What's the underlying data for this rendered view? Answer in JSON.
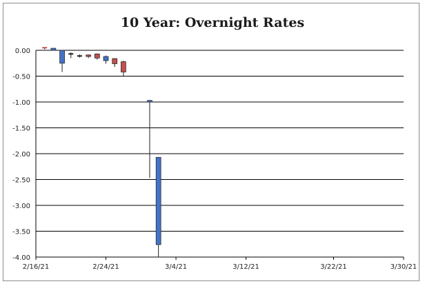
{
  "chart_data": {
    "type": "candlestick",
    "title": "10 Year:  Overnight Rates",
    "xlabel": "",
    "ylabel": "",
    "xlim": [
      "2/16/21",
      "3/30/21"
    ],
    "ylim": [
      -4.0,
      0.0
    ],
    "y_ticks": [
      "0.00",
      "-0.50",
      "-1.00",
      "-1.50",
      "-2.00",
      "-2.50",
      "-3.00",
      "-3.50",
      "-4.00"
    ],
    "x_ticks": [
      "2/16/21",
      "2/24/21",
      "3/4/21",
      "3/12/21",
      "3/22/21",
      "3/30/21"
    ],
    "grid": "horizontal",
    "legend": "none",
    "colors": {
      "up": "#4472c4",
      "down": "#c0504d",
      "neutral": "#1f1f1f",
      "axis": "#000000",
      "grid": "#000000"
    },
    "candles": [
      {
        "date": "2/17/21",
        "open": 0.03,
        "close": 0.05,
        "high": 0.06,
        "low": 0.02,
        "dir": "down"
      },
      {
        "date": "2/18/21",
        "open": 0.0,
        "close": 0.04,
        "high": 0.04,
        "low": 0.0,
        "dir": "up"
      },
      {
        "date": "2/19/21",
        "open": 0.0,
        "close": -0.25,
        "high": 0.0,
        "low": -0.42,
        "dir": "up"
      },
      {
        "date": "2/20/21",
        "open": -0.07,
        "close": -0.07,
        "high": -0.04,
        "low": -0.15,
        "dir": "neutral"
      },
      {
        "date": "2/21/21",
        "open": -0.11,
        "close": -0.11,
        "high": -0.08,
        "low": -0.14,
        "dir": "neutral"
      },
      {
        "date": "2/22/21",
        "open": -0.09,
        "close": -0.12,
        "high": -0.08,
        "low": -0.15,
        "dir": "down"
      },
      {
        "date": "2/23/21",
        "open": -0.07,
        "close": -0.15,
        "high": -0.06,
        "low": -0.18,
        "dir": "down"
      },
      {
        "date": "2/24/21",
        "open": -0.12,
        "close": -0.2,
        "high": -0.1,
        "low": -0.26,
        "dir": "up"
      },
      {
        "date": "2/25/21",
        "open": -0.16,
        "close": -0.26,
        "high": -0.15,
        "low": -0.32,
        "dir": "down"
      },
      {
        "date": "2/26/21",
        "open": -0.22,
        "close": -0.42,
        "high": -0.2,
        "low": -0.5,
        "dir": "down"
      },
      {
        "date": "3/1/21",
        "open": -0.97,
        "close": -1.0,
        "high": -0.96,
        "low": -2.47,
        "dir": "up"
      },
      {
        "date": "3/2/21",
        "open": -2.07,
        "close": -3.76,
        "high": -2.07,
        "low": -4.0,
        "dir": "up"
      }
    ]
  }
}
